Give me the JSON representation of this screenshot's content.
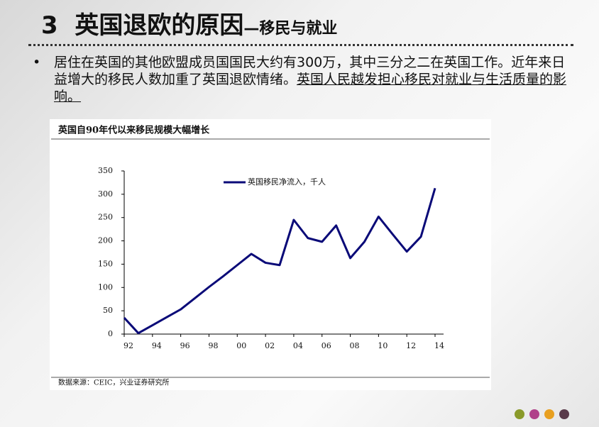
{
  "heading": {
    "number": "3",
    "title": "英国退欧的原因",
    "subtitle": "—移民与就业"
  },
  "bullet": {
    "text": "居住在英国的其他欧盟成员国国民大约有300万，其中三分之二在英国工作。近年来日益增大的移民人数加重了英国退欧情绪。",
    "underlined": "英国人民越发担心移民对就业与生活质量的影响。"
  },
  "chart_data": {
    "type": "line",
    "title": "英国自90年代以来移民规模大幅增长",
    "x": [
      1992,
      1993,
      1994,
      1995,
      1996,
      1997,
      1998,
      1999,
      2000,
      2001,
      2002,
      2003,
      2004,
      2005,
      2006,
      2007,
      2008,
      2009,
      2010,
      2011,
      2012,
      2013,
      2014
    ],
    "series": [
      {
        "name": "英国移民净流入，千人",
        "color": "#0a0a78",
        "values": [
          35,
          2,
          19,
          36,
          53,
          77,
          101,
          124,
          148,
          172,
          153,
          148,
          245,
          206,
          198,
          233,
          163,
          198,
          252,
          214,
          177,
          209,
          313
        ]
      }
    ],
    "xlim": [
      1992,
      2014
    ],
    "xticks": [
      {
        "value": 1992,
        "label": "92"
      },
      {
        "value": 1994,
        "label": "94"
      },
      {
        "value": 1996,
        "label": "96"
      },
      {
        "value": 1998,
        "label": "98"
      },
      {
        "value": 2000,
        "label": "00"
      },
      {
        "value": 2002,
        "label": "02"
      },
      {
        "value": 2004,
        "label": "04"
      },
      {
        "value": 2006,
        "label": "06"
      },
      {
        "value": 2008,
        "label": "08"
      },
      {
        "value": 2010,
        "label": "10"
      },
      {
        "value": 2012,
        "label": "12"
      },
      {
        "value": 2014,
        "label": "14"
      }
    ],
    "ylim": [
      0,
      350
    ],
    "yticks": [
      0,
      50,
      100,
      150,
      200,
      250,
      300,
      350
    ],
    "legend": "upper left",
    "source": "数据来源：CEIC，兴业证券研究所"
  }
}
